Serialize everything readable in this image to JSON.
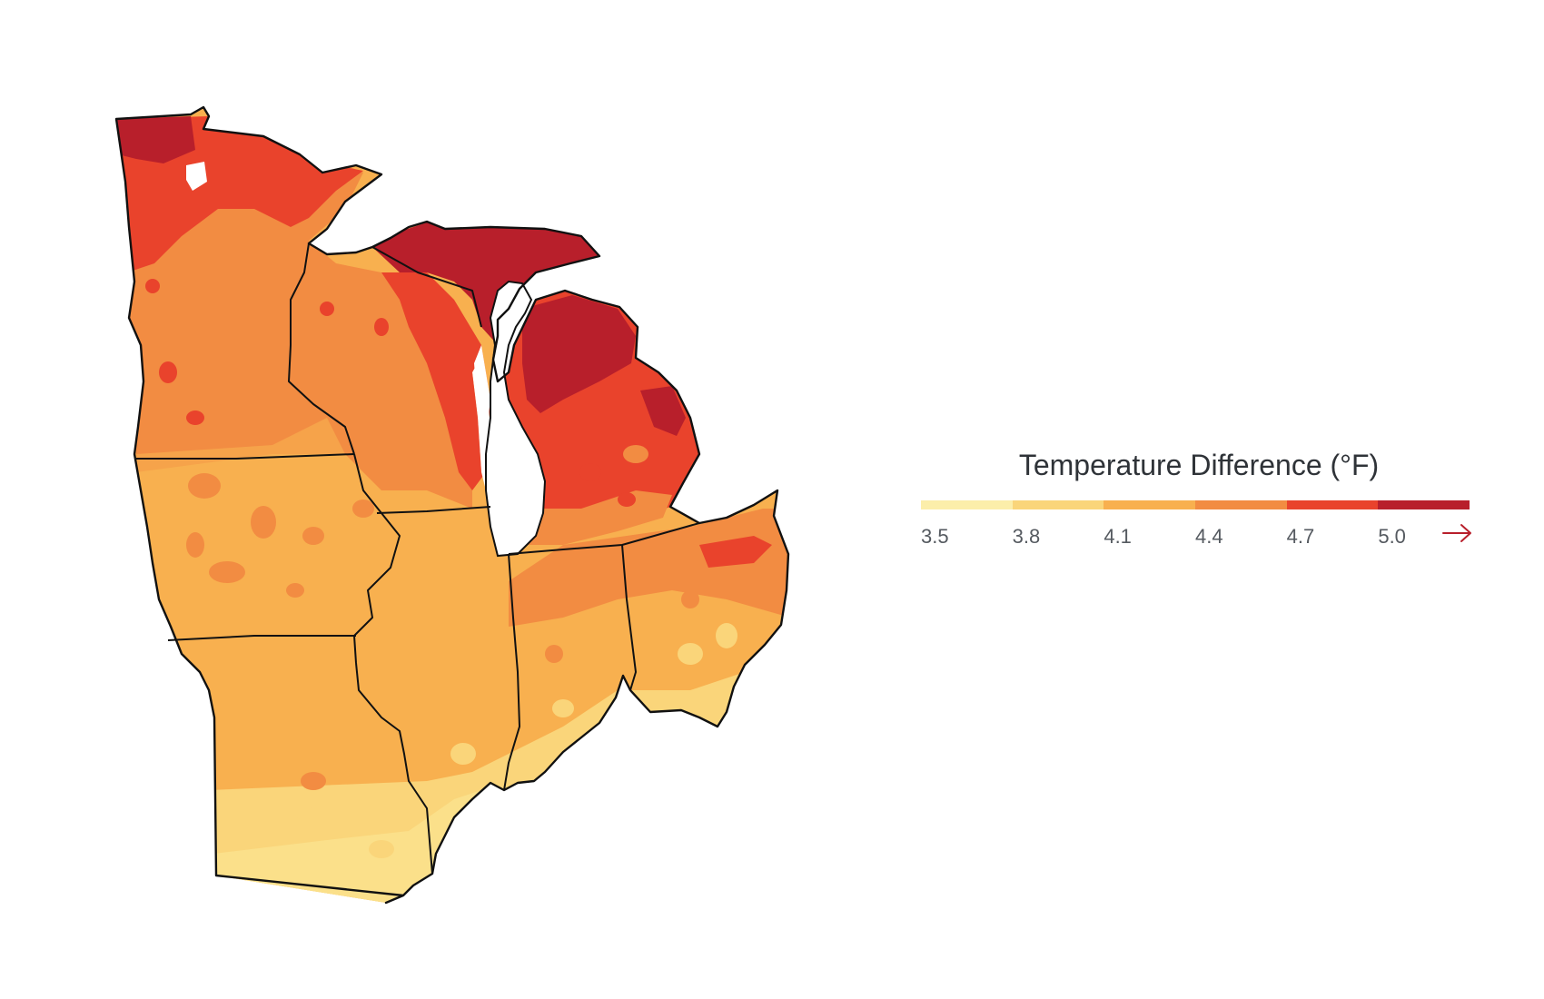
{
  "legend": {
    "title": "Temperature Difference (°F)",
    "bins": [
      {
        "from": 3.5,
        "color": "#fceeaa"
      },
      {
        "from": 3.8,
        "color": "#fad57a"
      },
      {
        "from": 4.1,
        "color": "#f8b04f"
      },
      {
        "from": 4.4,
        "color": "#f28c42"
      },
      {
        "from": 4.7,
        "color": "#e9432c"
      },
      {
        "from": 5.0,
        "color": "#b81f2b"
      }
    ],
    "ticks": [
      "3.5",
      "3.8",
      "4.1",
      "4.4",
      "4.7",
      "5.0"
    ],
    "arrow_color": "#b81f2b",
    "open_ended": true
  },
  "map": {
    "region": "Midwest United States",
    "states": [
      "Minnesota",
      "Wisconsin",
      "Michigan",
      "Iowa",
      "Illinois",
      "Indiana",
      "Ohio",
      "Missouri"
    ],
    "value_by_state": {
      "Minnesota": "4.4–5.0+",
      "Wisconsin": "4.4–5.0+",
      "Michigan": "4.4–5.0+",
      "Iowa": "4.1–4.4",
      "Illinois": "3.8–4.4",
      "Indiana": "3.8–4.4",
      "Ohio": "3.8–4.7",
      "Missouri": "3.5–4.1"
    },
    "water_color": "#ffffff",
    "border_color": "#111111"
  }
}
